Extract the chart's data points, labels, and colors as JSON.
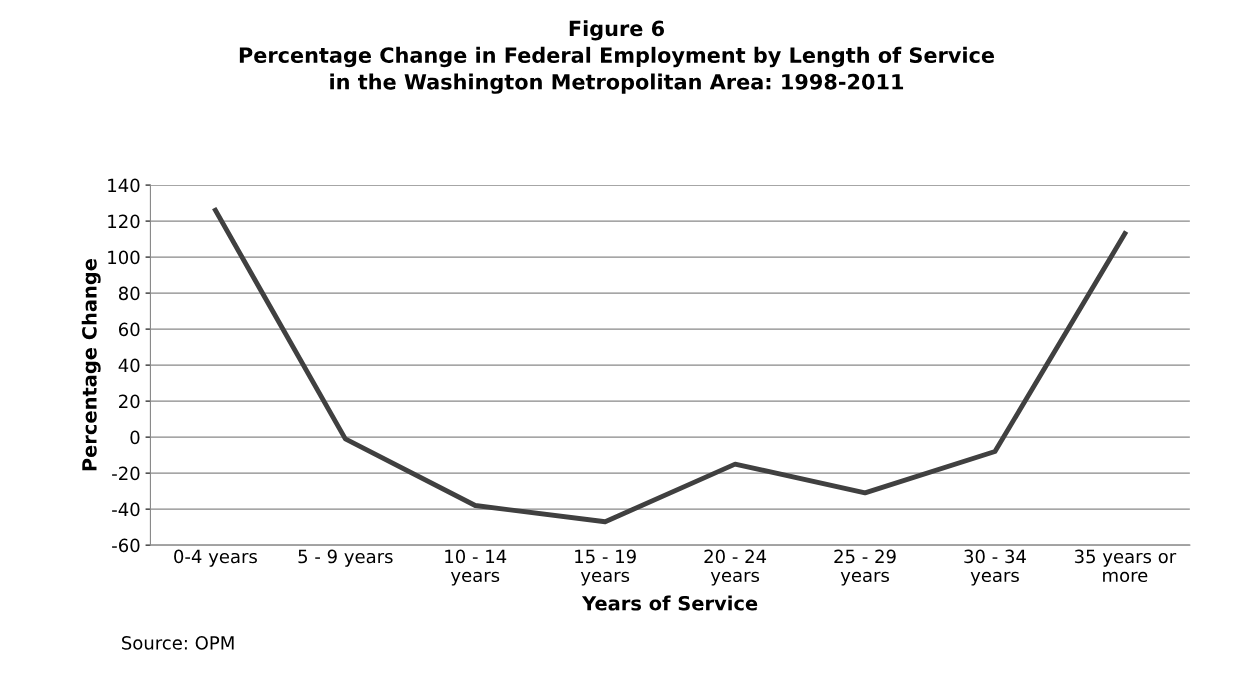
{
  "chart_data": {
    "type": "line",
    "title": "Figure 6\nPercentage Change in Federal Employment by Length of Service\nin the Washington Metropolitan Area: 1998-2011",
    "xlabel": "Years of Service",
    "ylabel": "Percentage Change",
    "categories": [
      "0-4 years",
      "5 - 9 years",
      "10 - 14\nyears",
      "15 - 19\nyears",
      "20 - 24\nyears",
      "25 - 29\nyears",
      "30 - 34\nyears",
      "35 years or\nmore"
    ],
    "series": [
      {
        "color": "#404040",
        "values": [
          126,
          -1,
          -38,
          -47,
          -15,
          -31,
          -8,
          113
        ]
      }
    ],
    "ylim": [
      -60,
      140
    ],
    "yticks": [
      -60,
      -40,
      -20,
      0,
      20,
      40,
      60,
      80,
      100,
      120,
      140
    ],
    "grid": "y",
    "marker": "none",
    "line_style": "solid",
    "annotations": [
      "Source: OPM"
    ]
  }
}
